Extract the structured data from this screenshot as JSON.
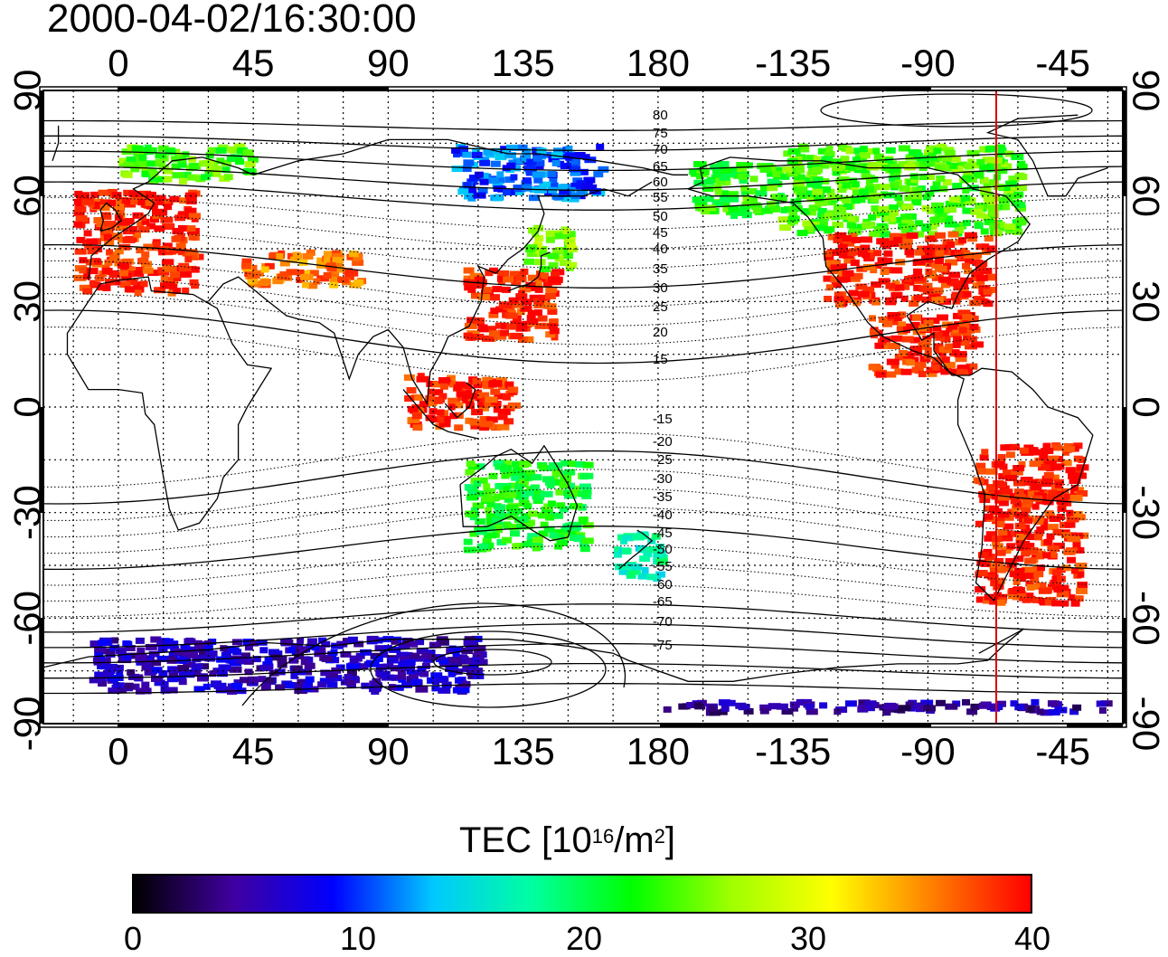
{
  "title": "2000-04-02/16:30:00",
  "map": {
    "projection": "equirectangular",
    "lon_ticks_top": [
      "0",
      "45",
      "90",
      "135",
      "180",
      "-135",
      "-90",
      "-45"
    ],
    "lon_ticks_bottom": [
      "0",
      "45",
      "90",
      "135",
      "180",
      "-135",
      "-90",
      "-45"
    ],
    "lat_ticks_left": [
      "90",
      "60",
      "30",
      "0",
      "-30",
      "-60",
      "-90"
    ],
    "lat_ticks_right": [
      "90",
      "60",
      "30",
      "0",
      "-30",
      "-60",
      "-90"
    ],
    "magnetic_latitude_labels_north": [
      "80",
      "75",
      "70",
      "65",
      "60",
      "55",
      "50",
      "45",
      "40",
      "35",
      "30",
      "25",
      "20",
      "15"
    ],
    "magnetic_latitude_labels_south": [
      "-15",
      "-20",
      "-25",
      "-30",
      "-35",
      "-40",
      "-45",
      "-50",
      "-55",
      "-60",
      "-65",
      "-70",
      "-75"
    ],
    "terminator_line_color": "#e00000",
    "grid": "dotted"
  },
  "colorbar": {
    "title_prefix": "TEC  [10",
    "title_exp1": "16",
    "title_mid": "/m",
    "title_exp2": "2",
    "title_suffix": "]",
    "ticks": [
      "0",
      "10",
      "20",
      "30",
      "40"
    ],
    "range": [
      0,
      40
    ],
    "colors": [
      "#000000",
      "#4000a0",
      "#0000ff",
      "#00c8ff",
      "#00ffa0",
      "#00ff00",
      "#a0ff00",
      "#ffff00",
      "#ff8000",
      "#ff0000"
    ]
  },
  "tec_regions": [
    {
      "name": "Europe",
      "lon": [
        -15,
        25
      ],
      "lat": [
        33,
        62
      ],
      "tec": 39
    },
    {
      "name": "Scandinavia",
      "lon": [
        0,
        45
      ],
      "lat": [
        65,
        75
      ],
      "tec": 24
    },
    {
      "name": "Central Asia",
      "lon": [
        40,
        80
      ],
      "lat": [
        35,
        45
      ],
      "tec": 36
    },
    {
      "name": "East Asia",
      "lon": [
        115,
        145
      ],
      "lat": [
        20,
        40
      ],
      "tec": 39
    },
    {
      "name": "Japan North",
      "lon": [
        135,
        150
      ],
      "lat": [
        40,
        52
      ],
      "tec": 26
    },
    {
      "name": "Siberia",
      "lon": [
        110,
        160
      ],
      "lat": [
        60,
        75
      ],
      "tec": 11
    },
    {
      "name": "Southeast Asia",
      "lon": [
        95,
        130
      ],
      "lat": [
        -5,
        10
      ],
      "tec": 39
    },
    {
      "name": "Alaska",
      "lon": [
        -170,
        -140
      ],
      "lat": [
        55,
        70
      ],
      "tec": 23
    },
    {
      "name": "Canada",
      "lon": [
        -140,
        -60
      ],
      "lat": [
        50,
        75
      ],
      "tec": 24
    },
    {
      "name": "North America",
      "lon": [
        -125,
        -70
      ],
      "lat": [
        30,
        50
      ],
      "tec": 39
    },
    {
      "name": "Central America",
      "lon": [
        -110,
        -75
      ],
      "lat": [
        10,
        28
      ],
      "tec": 39
    },
    {
      "name": "South America",
      "lon": [
        -75,
        -40
      ],
      "lat": [
        -55,
        -10
      ],
      "tec": 39
    },
    {
      "name": "Australia",
      "lon": [
        115,
        155
      ],
      "lat": [
        -40,
        -15
      ],
      "tec": 22
    },
    {
      "name": "New Zealand",
      "lon": [
        165,
        180
      ],
      "lat": [
        -48,
        -35
      ],
      "tec": 17
    },
    {
      "name": "Antarctic Coast",
      "lon": [
        -10,
        120
      ],
      "lat": [
        -80,
        -65
      ],
      "tec": 6
    },
    {
      "name": "Antarctica Rim",
      "lon": [
        -30,
        180
      ],
      "lat": [
        -86,
        -83
      ],
      "tec": 5
    }
  ]
}
